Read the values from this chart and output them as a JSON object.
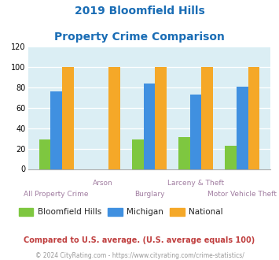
{
  "title_line1": "2019 Bloomfield Hills",
  "title_line2": "Property Crime Comparison",
  "categories": [
    "All Property Crime",
    "Arson",
    "Burglary",
    "Larceny & Theft",
    "Motor Vehicle Theft"
  ],
  "bloomfield_hills": [
    29,
    0,
    29,
    31,
    23
  ],
  "michigan": [
    76,
    0,
    84,
    73,
    81
  ],
  "national": [
    100,
    100,
    100,
    100,
    100
  ],
  "colors": {
    "bloomfield": "#7ec740",
    "michigan": "#4090e0",
    "national": "#f5a828"
  },
  "ylim": [
    0,
    120
  ],
  "yticks": [
    0,
    20,
    40,
    60,
    80,
    100,
    120
  ],
  "title_color": "#1a6db5",
  "xlabel_color": "#a07ca0",
  "background_color": "#dbeef4",
  "legend_label_bloomfield": "Bloomfield Hills",
  "legend_label_michigan": "Michigan",
  "legend_label_national": "National",
  "legend_text_color": "#222222",
  "footnote1": "Compared to U.S. average. (U.S. average equals 100)",
  "footnote2": "© 2024 CityRating.com - https://www.cityrating.com/crime-statistics/",
  "footnote1_color": "#c04040",
  "footnote2_color": "#999999",
  "footnote2_link_color": "#4090e0",
  "xtick_top_labels": [
    "Arson",
    "Larceny & Theft"
  ],
  "xtick_top_indices": [
    1,
    3
  ],
  "xtick_bottom_labels": [
    "All Property Crime",
    "Burglary",
    "Motor Vehicle Theft"
  ],
  "xtick_bottom_indices": [
    0,
    2,
    4
  ]
}
